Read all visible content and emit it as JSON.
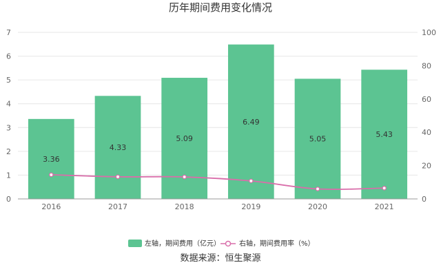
{
  "chart_data": {
    "type": "bar",
    "title": "历年期间费用变化情况",
    "categories": [
      "2016",
      "2017",
      "2018",
      "2019",
      "2020",
      "2021"
    ],
    "series": [
      {
        "name": "左轴，期间费用（亿元）",
        "type": "bar",
        "axis": "left",
        "values": [
          3.36,
          4.33,
          5.09,
          6.49,
          5.05,
          5.43
        ],
        "labels": [
          "3.36",
          "4.33",
          "5.09",
          "6.49",
          "5.05",
          "5.43"
        ]
      },
      {
        "name": "右轴，期间费用率（%）",
        "type": "line",
        "axis": "right",
        "values": [
          14.5,
          13.3,
          13.2,
          10.8,
          6.0,
          6.5
        ]
      }
    ],
    "left_axis": {
      "ylim": [
        0,
        7
      ],
      "ticks": [
        "0",
        "1",
        "2",
        "3",
        "4",
        "5",
        "6",
        "7"
      ]
    },
    "right_axis": {
      "ylim": [
        0,
        100
      ],
      "ticks": [
        "0",
        "20",
        "40",
        "60",
        "80",
        "100"
      ]
    },
    "grid": true,
    "legend_position": "bottom",
    "colors": {
      "bar": "#5cc492",
      "line": "#d96eaa",
      "grid": "#e6e6e6",
      "axis": "#999999"
    }
  },
  "source_note": "数据来源：恒生聚源"
}
